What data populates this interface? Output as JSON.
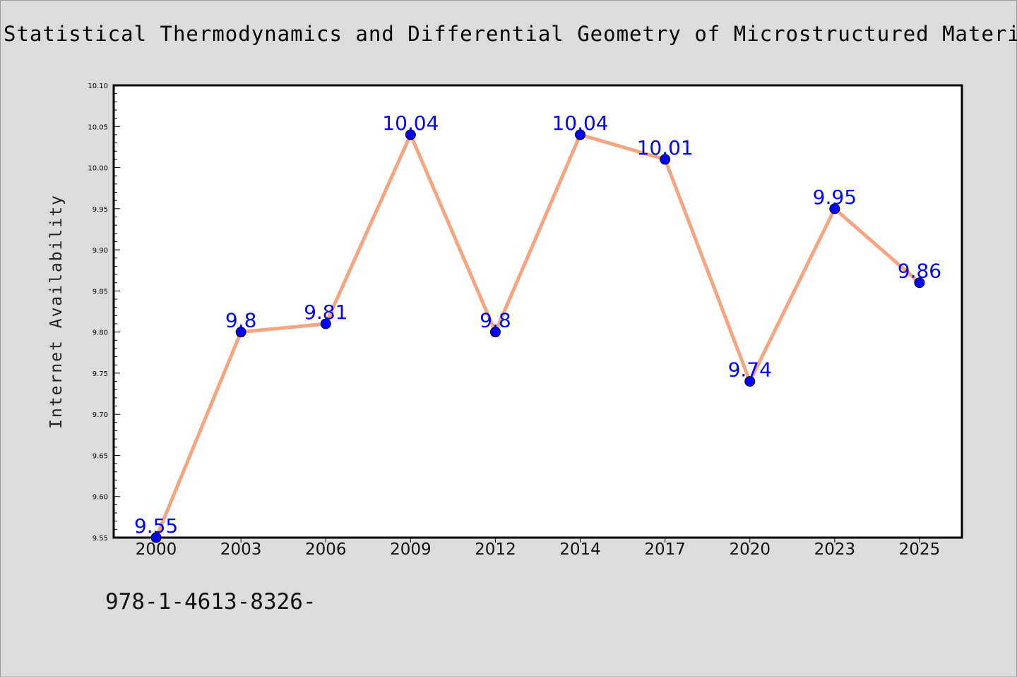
{
  "chart_data": {
    "type": "line",
    "title": "Statistical Thermodynamics and Differential Geometry of Microstructured Material",
    "xlabel": "",
    "ylabel": "Internet Availability",
    "categories": [
      "2000",
      "2003",
      "2006",
      "2009",
      "2012",
      "2014",
      "2017",
      "2020",
      "2023",
      "2025"
    ],
    "values": [
      9.55,
      9.8,
      9.81,
      10.04,
      9.8,
      10.04,
      10.01,
      9.74,
      9.95,
      9.86
    ],
    "data_labels": [
      "9.55",
      "9.8",
      "9.81",
      "10.04",
      "9.8",
      "10.04",
      "10.01",
      "9.74",
      "9.95",
      "9.86"
    ],
    "ylim": [
      9.55,
      10.1
    ],
    "yticks": [
      "9.55",
      "9.60",
      "9.65",
      "9.70",
      "9.75",
      "9.80",
      "9.85",
      "9.90",
      "9.95",
      "10.00",
      "10.05",
      "10.10"
    ],
    "grid": false,
    "legend": "none",
    "colors": {
      "line": "#f4a582",
      "marker": "#0000ff",
      "label": "#0000ff",
      "background": "#dcdcdc",
      "plot_area": "#ffffff"
    }
  },
  "footer": {
    "code": "978-1-4613-8326-"
  }
}
